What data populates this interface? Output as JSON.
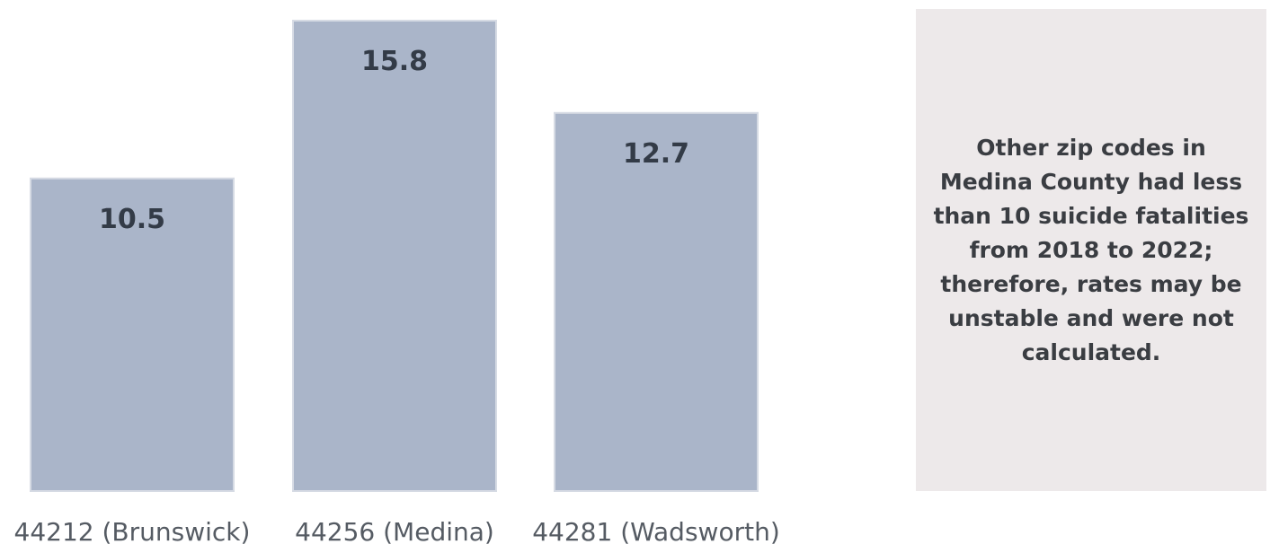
{
  "chart_data": {
    "type": "bar",
    "categories": [
      "44212 (Brunswick)",
      "44256 (Medina)",
      "44281 (Wadsworth)"
    ],
    "values": [
      10.5,
      15.8,
      12.7
    ],
    "value_labels": [
      "10.5",
      "15.8",
      "12.7"
    ],
    "title": "",
    "xlabel": "",
    "ylabel": "",
    "ylim": [
      0,
      15.8
    ],
    "grid": false,
    "legend": "none",
    "colors": {
      "bar": "#aab5c9",
      "value_label": "#333b47",
      "category_label": "#555b63"
    }
  },
  "note": {
    "text": "Other zip codes in Medina County had less than 10 suicide fatalities from 2018 to 2022; therefore, rates may be unstable and were not calculated.",
    "background": "#ede9ea"
  }
}
